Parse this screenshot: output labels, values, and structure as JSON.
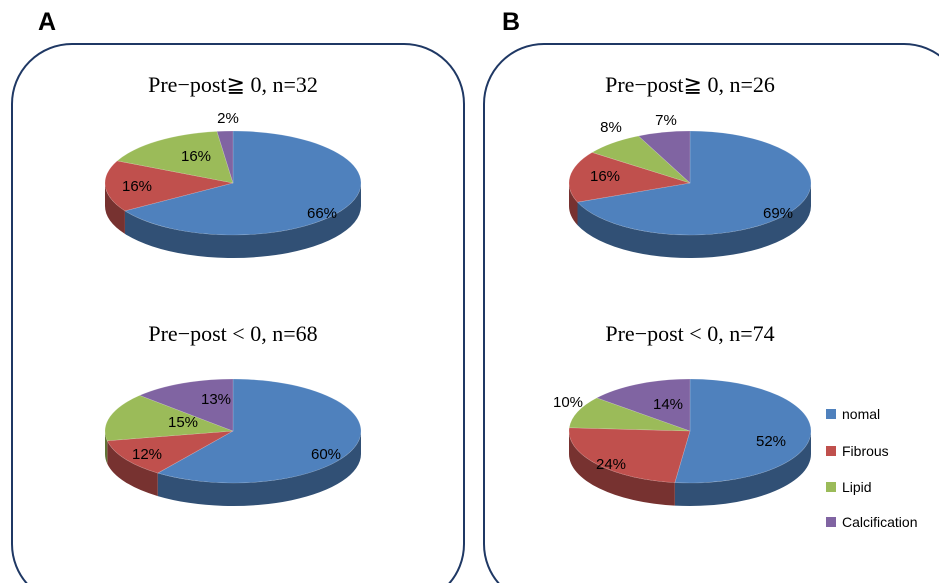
{
  "panels": [
    {
      "label": "A"
    },
    {
      "label": "B"
    }
  ],
  "colors": {
    "nomal": "#4f81bd",
    "Fibrous": "#c0504d",
    "Lipid": "#9bbb59",
    "Calcification": "#8064a2"
  },
  "legend": [
    "nomal",
    "Fibrous",
    "Lipid",
    "Calcification"
  ],
  "chart_data": [
    {
      "type": "pie",
      "panel": "A",
      "title": "Pre−post≧ 0,  n=32",
      "categories": [
        "nomal",
        "Fibrous",
        "Lipid",
        "Calcification"
      ],
      "values": [
        66,
        16,
        16,
        2
      ],
      "labels": [
        "66%",
        "16%",
        "16%",
        "2%"
      ]
    },
    {
      "type": "pie",
      "panel": "A",
      "title": "Pre−post < 0,  n=68",
      "categories": [
        "nomal",
        "Fibrous",
        "Lipid",
        "Calcification"
      ],
      "values": [
        60,
        12,
        15,
        13
      ],
      "labels": [
        "60%",
        "12%",
        "15%",
        "13%"
      ]
    },
    {
      "type": "pie",
      "panel": "B",
      "title": "Pre−post≧ 0,  n=26",
      "categories": [
        "nomal",
        "Fibrous",
        "Lipid",
        "Calcification"
      ],
      "values": [
        69,
        16,
        8,
        7
      ],
      "labels": [
        "69%",
        "16%",
        "8%",
        "7%"
      ]
    },
    {
      "type": "pie",
      "panel": "B",
      "title": "Pre−post < 0,  n=74",
      "categories": [
        "nomal",
        "Fibrous",
        "Lipid",
        "Calcification"
      ],
      "values": [
        52,
        24,
        10,
        14
      ],
      "labels": [
        "52%",
        "24%",
        "10%",
        "14%"
      ]
    }
  ]
}
